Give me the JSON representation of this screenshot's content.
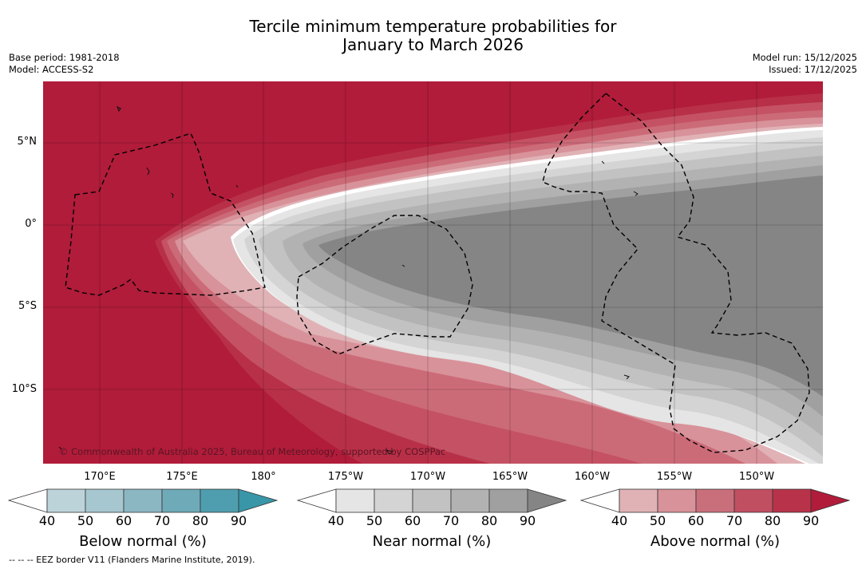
{
  "title": {
    "line1": "Tercile minimum temperature probabilities for",
    "line2": "January to March 2026"
  },
  "meta_left": {
    "base_period": "Base period: 1981-2018",
    "model": "Model: ACCESS-S2"
  },
  "meta_right": {
    "model_run": "Model run: 15/12/2025",
    "issued": "Issued: 17/12/2025"
  },
  "map": {
    "copyright": "© Commonwealth of Australia 2025, Bureau of Meteorology, supported by COSPPac",
    "lat_labels": [
      "5°N",
      "0°",
      "5°S",
      "10°S"
    ],
    "lon_labels": [
      "170°E",
      "175°E",
      "180°",
      "175°W",
      "170°W",
      "165°W",
      "160°W",
      "155°W",
      "150°W"
    ],
    "colors": {
      "above_90": "#b01c3a",
      "above_80": "#b83048",
      "above_70": "#c45264",
      "above_60": "#cc6b78",
      "above_50": "#d8929a",
      "above_40": "#e0b2b6",
      "neutral": "#ffffff",
      "near_40": "#e5e5e5",
      "near_50": "#d4d4d4",
      "near_60": "#c2c2c2",
      "near_70": "#b2b2b2",
      "near_80": "#a0a0a0",
      "near_90": "#858585"
    }
  },
  "colorbars": {
    "below": {
      "title": "Below normal (%)",
      "ticks": [
        "40",
        "50",
        "60",
        "70",
        "80",
        "90"
      ],
      "colors": [
        "#bdd3da",
        "#a6c7cf",
        "#8bb7c3",
        "#6faab8",
        "#4f9eaf",
        "#3896a8"
      ]
    },
    "near": {
      "title": "Near normal (%)",
      "ticks": [
        "40",
        "50",
        "60",
        "70",
        "80",
        "90"
      ],
      "colors": [
        "#e5e5e5",
        "#d4d4d4",
        "#c2c2c2",
        "#b2b2b2",
        "#a0a0a0",
        "#858585"
      ]
    },
    "above": {
      "title": "Above normal (%)",
      "ticks": [
        "40",
        "50",
        "60",
        "70",
        "80",
        "90"
      ],
      "colors": [
        "#e0b2b6",
        "#d8929a",
        "#c96f7b",
        "#c14f62",
        "#b8334a",
        "#b01c3a"
      ]
    }
  },
  "footer": {
    "eez_note": "--  --  -- EEZ border V11 (Flanders Marine Institute, 2019)."
  }
}
